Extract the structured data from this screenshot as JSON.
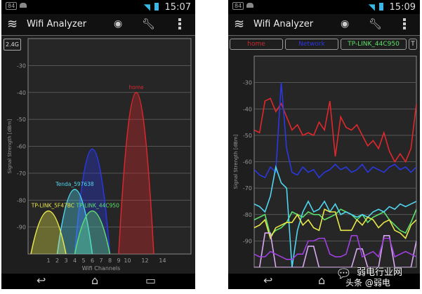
{
  "left_screen": {
    "status": {
      "badge": "84",
      "time": "15:07"
    },
    "app_title": "Wifi Analyzer",
    "band_button": "2.4G",
    "chart_data": {
      "type": "area",
      "xlabel": "Wifi Channels",
      "ylabel": "Signal Strength [dBm]",
      "ylim": [
        -100,
        -20
      ],
      "yticks": [
        -30,
        -40,
        -50,
        -60,
        -70,
        -80,
        -90
      ],
      "xticks": [
        1,
        2,
        3,
        4,
        5,
        6,
        7,
        8,
        9,
        10,
        12,
        14
      ],
      "grid": true,
      "series": [
        {
          "name": "home",
          "channel": 11,
          "signal": -40,
          "color": "#d9282c",
          "label_shown": true
        },
        {
          "name": "",
          "channel": 6,
          "signal": -61,
          "color": "#2a38e0",
          "label_shown": false
        },
        {
          "name": "Tenda_597638",
          "channel": 4,
          "signal": -76,
          "color": "#4fd6f0",
          "label_shown": true
        },
        {
          "name": "TP-LINK_5F47BC",
          "channel": 1,
          "signal": -84,
          "color": "#e8e84a",
          "label_shown": true,
          "label_text": "-LINK_5F47BC"
        },
        {
          "name": "TP-LINK_44C950",
          "channel": 6,
          "signal": -84,
          "color": "#5ee06a",
          "label_shown": true,
          "label_text": "LINK_44C950"
        }
      ]
    }
  },
  "right_screen": {
    "status": {
      "badge": "84",
      "time": "15:09"
    },
    "app_title": "Wifi Analyzer",
    "chips": [
      {
        "label": "home",
        "color": "#c8282c"
      },
      {
        "label": "Network",
        "color": "#2a38e0"
      },
      {
        "label": "TP-LINK_44C950",
        "color": "#5ee06a"
      },
      {
        "label": "T",
        "color": "#dddddd"
      }
    ],
    "chart_data": {
      "type": "line",
      "ylabel": "Signal Strength [dBm]",
      "ylim": [
        -100,
        -20
      ],
      "yticks": [
        -30,
        -40,
        -50,
        -60,
        -70,
        -80,
        -90
      ],
      "grid": true,
      "series": [
        {
          "name": "home",
          "color": "#e0282c",
          "values": [
            -48,
            -49,
            -37,
            -36,
            -41,
            -38,
            -43,
            -48,
            -46,
            -50,
            -49,
            -50,
            -45,
            -48,
            -37,
            -58,
            -43,
            -47,
            -48,
            -46,
            -50,
            -54,
            -52,
            -55,
            -49,
            -56,
            -60,
            -57,
            -60,
            -55,
            -38
          ]
        },
        {
          "name": "Network",
          "color": "#2a38e0",
          "values": [
            -63,
            -65,
            -66,
            -62,
            -64,
            -30,
            -55,
            -64,
            -65,
            -62,
            -64,
            -63,
            -66,
            -64,
            -63,
            -61,
            -63,
            -62,
            -64,
            -63,
            -61,
            -64,
            -62,
            -63,
            -64,
            -62,
            -61,
            -63,
            -62,
            -64,
            -62
          ]
        },
        {
          "name": "TP-LINK_44C950",
          "color": "#5ee06a",
          "values": [
            -82,
            -81,
            -80,
            -88,
            -86,
            -85,
            -83,
            -79,
            -80,
            -81,
            -79,
            -80,
            -80,
            -82,
            -81,
            -80,
            -78,
            -79,
            -80,
            -82,
            -80,
            -83,
            -81,
            -80,
            -79,
            -82,
            -84,
            -86,
            -87,
            -83,
            -78
          ]
        },
        {
          "name": "T",
          "color": "#4fd6f0",
          "values": [
            -76,
            -77,
            -79,
            -73,
            -62,
            -68,
            -70,
            -100,
            -86,
            -79,
            -75,
            -79,
            -78,
            -75,
            -79,
            -76,
            -80,
            -79,
            -80,
            -81,
            -80,
            -81,
            -79,
            -78,
            -79,
            -77,
            -78,
            -76,
            -77,
            -76,
            -75
          ]
        },
        {
          "name": "",
          "color": "#e8e84a",
          "values": [
            -85,
            -84,
            -82,
            -89,
            -85,
            -84,
            -83,
            -83,
            -80,
            -84,
            -82,
            -85,
            -86,
            -78,
            -79,
            -79,
            -86,
            -86,
            -86,
            -82,
            -84,
            -81,
            -82,
            -85,
            -83,
            -82,
            -86,
            -87,
            -89,
            -84,
            -82
          ]
        },
        {
          "name": "",
          "color": "#d8a8f0",
          "values": [
            -100,
            -100,
            -87,
            -87,
            -100,
            -100,
            -100,
            -100,
            -100,
            -100,
            -92,
            -92,
            -100,
            -100,
            -100,
            -100,
            -100,
            -100,
            -100,
            -93,
            -93,
            -100,
            -100,
            -100,
            -88,
            -88,
            -100,
            -100,
            -100,
            -100,
            -90
          ]
        },
        {
          "name": "",
          "color": "#a040e0",
          "values": [
            -95,
            -96,
            -96,
            -94,
            -95,
            -96,
            -97,
            -97,
            -95,
            -95,
            -90,
            -90,
            -89,
            -89,
            -95,
            -96,
            -96,
            -95,
            -88,
            -88,
            -96,
            -95,
            -94,
            -96,
            -89,
            -89,
            -96,
            -95,
            -94,
            -95,
            -96
          ]
        }
      ]
    }
  },
  "watermark": {
    "line1": "弱电行业网",
    "line2": "头条 @弱电"
  }
}
